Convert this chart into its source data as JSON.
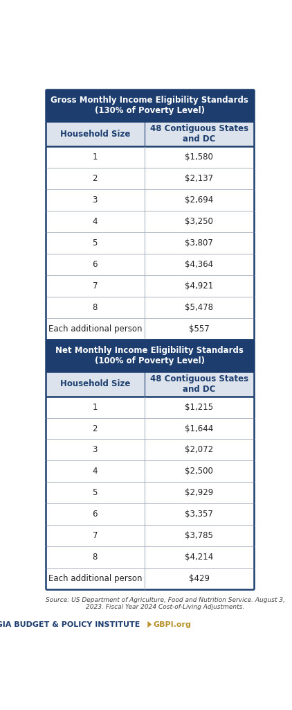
{
  "title1": "Gross Monthly Income Eligibility Standards\n(130% of Poverty Level)",
  "title2": "Net Monthly Income Eligibility Standards\n(100% of Poverty Level)",
  "col_header1": "Household Size",
  "col_header2": "48 Contiguous States\nand DC",
  "gross_rows": [
    [
      "1",
      "$1,580"
    ],
    [
      "2",
      "$2,137"
    ],
    [
      "3",
      "$2,694"
    ],
    [
      "4",
      "$3,250"
    ],
    [
      "5",
      "$3,807"
    ],
    [
      "6",
      "$4,364"
    ],
    [
      "7",
      "$4,921"
    ],
    [
      "8",
      "$5,478"
    ],
    [
      "Each additional person",
      "$557"
    ]
  ],
  "net_rows": [
    [
      "1",
      "$1,215"
    ],
    [
      "2",
      "$1,644"
    ],
    [
      "3",
      "$2,072"
    ],
    [
      "4",
      "$2,500"
    ],
    [
      "5",
      "$2,929"
    ],
    [
      "6",
      "$3,357"
    ],
    [
      "7",
      "$3,785"
    ],
    [
      "8",
      "$4,214"
    ],
    [
      "Each additional person",
      "$429"
    ]
  ],
  "header_bg": "#1c3d6e",
  "header_text": "#ffffff",
  "col_header_bg": "#dce3ec",
  "col_header_text": "#1c3d6e",
  "row_bg_white": "#ffffff",
  "row_divider_color": "#aab4c4",
  "border_color": "#1c3d6e",
  "body_text_color": "#222222",
  "source_text": "Source: US Department of Agriculture, Food and Nutrition Service. August 3,\n2023. Fiscal Year 2024 Cost-of-Living Adjustments.",
  "footer_org": "GEORGIA BUDGET & POLICY INSTITUTE",
  "footer_url": "GBPI.org",
  "footer_org_color": "#1c3d6e",
  "footer_url_color": "#b8922a",
  "col_split": 0.475
}
